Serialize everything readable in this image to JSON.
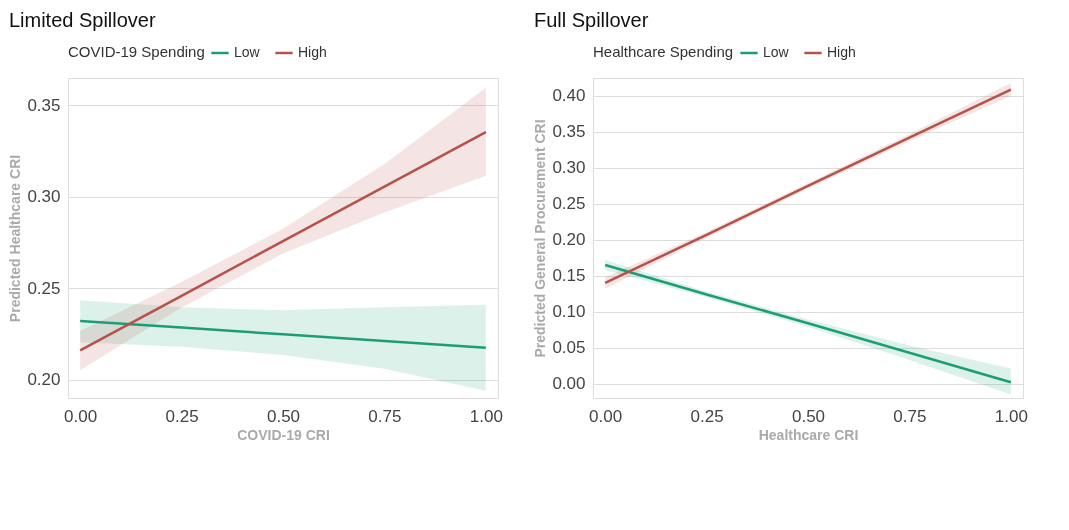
{
  "chart_data": [
    {
      "type": "line",
      "title": "Limited Spillover",
      "xlabel": "COVID-19 CRI",
      "ylabel": "Predicted Healthcare CRI",
      "legend_title": "COVID-19 Spending",
      "legend": "top",
      "grid": "y",
      "x": [
        0,
        0.25,
        0.5,
        0.75,
        1
      ],
      "series": [
        {
          "name": "Low",
          "color": "#1b9e77",
          "values": [
            0.2321,
            0.2285,
            0.2248,
            0.2212,
            0.2175
          ],
          "lower": [
            0.2205,
            0.218,
            0.2135,
            0.206,
            0.194
          ],
          "upper": [
            0.2434,
            0.2396,
            0.238,
            0.2396,
            0.241
          ]
        },
        {
          "name": "High",
          "color": "#b5524a",
          "values": [
            0.2161,
            0.2459,
            0.2758,
            0.3056,
            0.3354
          ],
          "lower": [
            0.2052,
            0.2395,
            0.269,
            0.2915,
            0.3116
          ],
          "upper": [
            0.2266,
            0.2535,
            0.2825,
            0.318,
            0.3597
          ]
        }
      ],
      "xlim": [
        -0.03,
        1.03
      ],
      "ylim": [
        0.19,
        0.365
      ],
      "xticks": [
        {
          "value": 0,
          "label": "0.00"
        },
        {
          "value": 0.25,
          "label": "0.25"
        },
        {
          "value": 0.5,
          "label": "0.50"
        },
        {
          "value": 0.75,
          "label": "0.75"
        },
        {
          "value": 1,
          "label": "1.00"
        }
      ],
      "yticks": [
        {
          "value": 0.2,
          "label": "0.20"
        },
        {
          "value": 0.25,
          "label": "0.25"
        },
        {
          "value": 0.3,
          "label": "0.30"
        },
        {
          "value": 0.35,
          "label": "0.35"
        }
      ]
    },
    {
      "type": "line",
      "title": "Full Spillover",
      "xlabel": "Healthcare CRI",
      "ylabel": "Predicted General Procurement CRI",
      "legend_title": "Healthcare Spending",
      "legend": "top",
      "grid": "y",
      "x": [
        0,
        0.25,
        0.5,
        0.75,
        1
      ],
      "series": [
        {
          "name": "Low",
          "color": "#1b9e77",
          "values": [
            0.165,
            0.124,
            0.084,
            0.043,
            0.002
          ],
          "lower": [
            0.158,
            0.12,
            0.079,
            0.033,
            -0.015
          ],
          "upper": [
            0.172,
            0.128,
            0.089,
            0.053,
            0.021
          ]
        },
        {
          "name": "High",
          "color": "#b5524a",
          "values": [
            0.14,
            0.207,
            0.275,
            0.342,
            0.409
          ],
          "lower": [
            0.132,
            0.203,
            0.271,
            0.337,
            0.4
          ],
          "upper": [
            0.148,
            0.211,
            0.279,
            0.347,
            0.418
          ]
        }
      ],
      "xlim": [
        -0.03,
        1.03
      ],
      "ylim": [
        -0.02,
        0.425
      ],
      "xticks": [
        {
          "value": 0,
          "label": "0.00"
        },
        {
          "value": 0.25,
          "label": "0.25"
        },
        {
          "value": 0.5,
          "label": "0.50"
        },
        {
          "value": 0.75,
          "label": "0.75"
        },
        {
          "value": 1,
          "label": "1.00"
        }
      ],
      "yticks": [
        {
          "value": 0,
          "label": "0.00"
        },
        {
          "value": 0.05,
          "label": "0.05"
        },
        {
          "value": 0.1,
          "label": "0.10"
        },
        {
          "value": 0.15,
          "label": "0.15"
        },
        {
          "value": 0.2,
          "label": "0.20"
        },
        {
          "value": 0.25,
          "label": "0.25"
        },
        {
          "value": 0.3,
          "label": "0.30"
        },
        {
          "value": 0.35,
          "label": "0.35"
        },
        {
          "value": 0.4,
          "label": "0.40"
        }
      ]
    }
  ]
}
